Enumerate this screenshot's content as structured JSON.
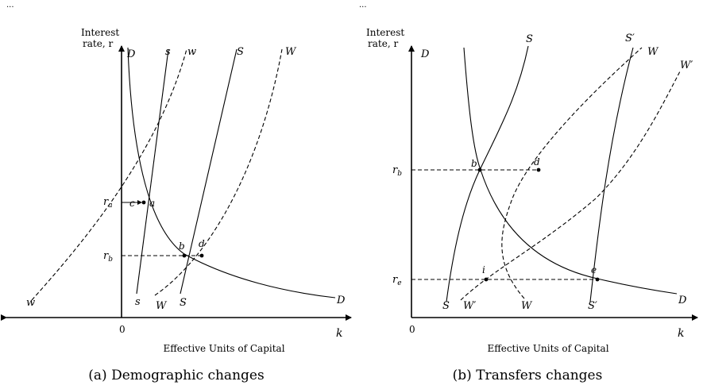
{
  "header_marks": [
    "...",
    "..."
  ],
  "panel_a": {
    "ylabel_line1": "Interest",
    "ylabel_line2": "rate, r",
    "xlabel": "Effective Units of Capital",
    "x_end": "k",
    "origin": "0",
    "caption": "(a)  Demographic changes",
    "r_ticks": [
      "r_a",
      "r_b"
    ],
    "curve_labels": {
      "D_top": "D",
      "s_top": "s",
      "w_top": "w",
      "S_top": "S",
      "W_top": "W",
      "w_bottom": "w",
      "s_bottom": "s",
      "W_bottom": "W",
      "S_bottom": "S",
      "D_bottom": "D"
    },
    "points": [
      "c",
      "a",
      "b",
      "d"
    ]
  },
  "panel_b": {
    "ylabel_line1": "Interest",
    "ylabel_line2": "rate, r",
    "xlabel": "Effective Units of Capital",
    "x_end": "k",
    "origin": "0",
    "caption": "(b)  Transfers changes",
    "r_ticks": [
      "r_b",
      "r_e"
    ],
    "curve_labels": {
      "D_top": "D",
      "S_top": "S",
      "Sp_top": "S′",
      "W_top": "W",
      "Wp_top": "W′",
      "S_bottom": "S",
      "Wp_bottom": "W′",
      "W_bottom": "W",
      "Sp_bottom": "S′",
      "D_bottom": "D"
    },
    "points": [
      "b",
      "d",
      "i",
      "e"
    ]
  }
}
